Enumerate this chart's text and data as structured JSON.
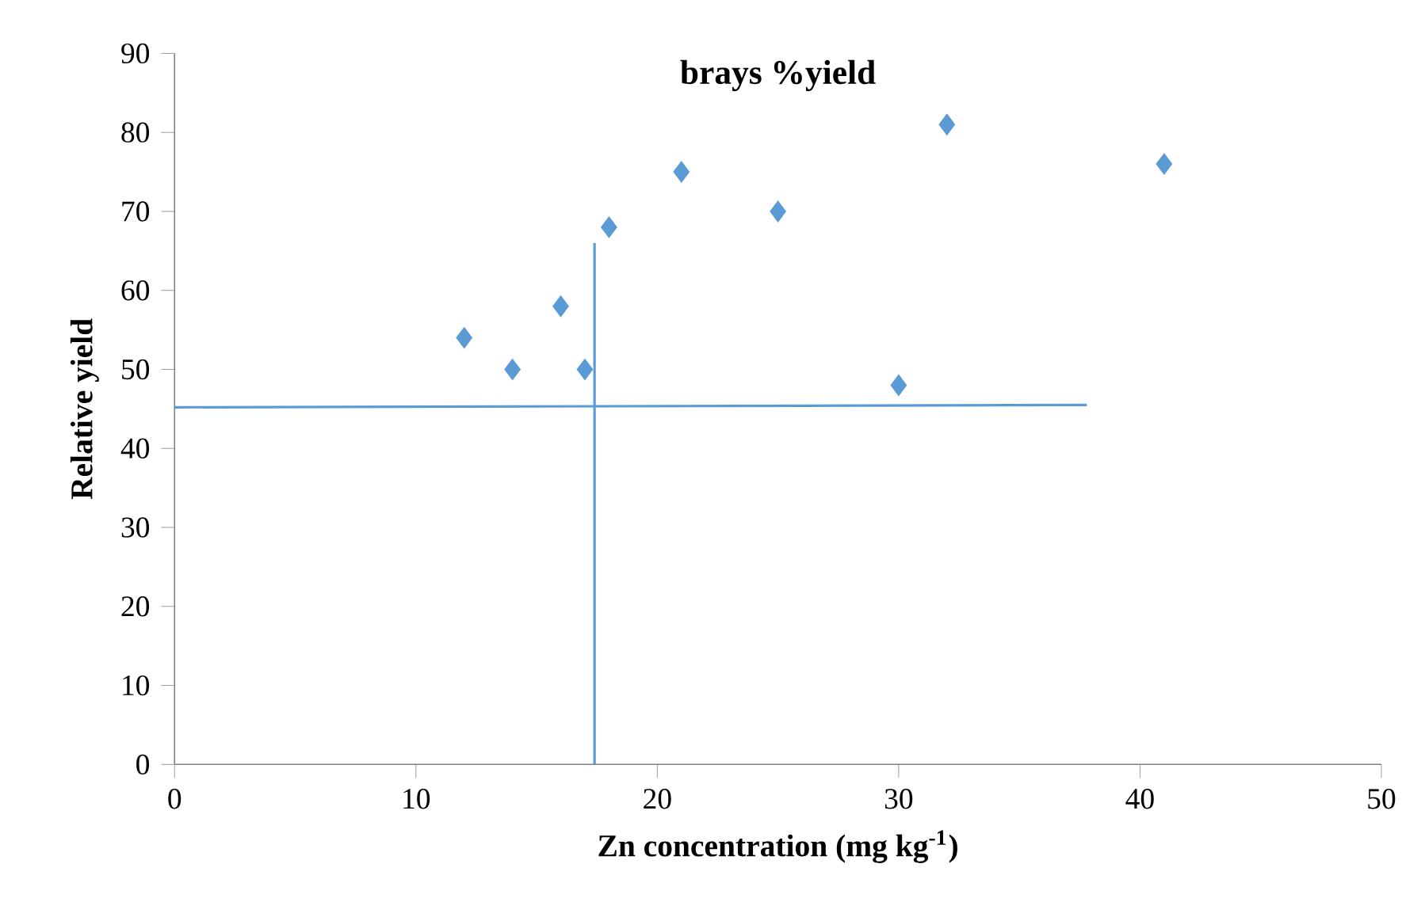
{
  "chart_data": {
    "type": "scatter",
    "title": "brays %yield",
    "xlabel": "Zn concentration (mg kg$^{-1}$)",
    "ylabel": "Relative yield",
    "xlim": [
      0,
      50
    ],
    "ylim": [
      0,
      90
    ],
    "xticks": [
      0,
      10,
      20,
      30,
      40,
      50
    ],
    "yticks": [
      0,
      10,
      20,
      30,
      40,
      50,
      60,
      70,
      80,
      90
    ],
    "grid": false,
    "marker": "diamond",
    "series": [
      {
        "color": "#5b9bd5",
        "x": [
          12,
          14,
          16,
          17,
          18,
          21,
          25,
          30,
          32,
          41
        ],
        "values": [
          54,
          50,
          58,
          50,
          68,
          75,
          70,
          48,
          81,
          76
        ]
      },
      {
        "type": "line",
        "color": "#5b9bd5",
        "marker": "none",
        "x": [
          0,
          37.8
        ],
        "values": [
          45.2,
          45.5
        ]
      },
      {
        "type": "line",
        "color": "#5b9bd5",
        "marker": "none",
        "x": [
          17.4,
          17.4
        ],
        "values": [
          0,
          66
        ]
      }
    ]
  }
}
